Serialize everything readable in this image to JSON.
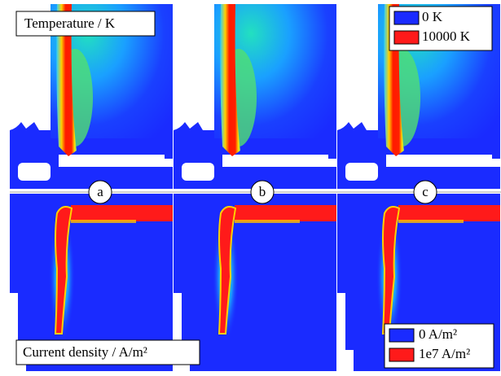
{
  "top_panel": {
    "title": "Temperature / K",
    "legend": [
      "0 K",
      "10000 K"
    ]
  },
  "bottom_panel": {
    "title": "Current density / A/m²",
    "legend": [
      "0 A/m²",
      "1e7 A/m²"
    ]
  },
  "panel_labels": [
    "a",
    "b",
    "c"
  ]
}
